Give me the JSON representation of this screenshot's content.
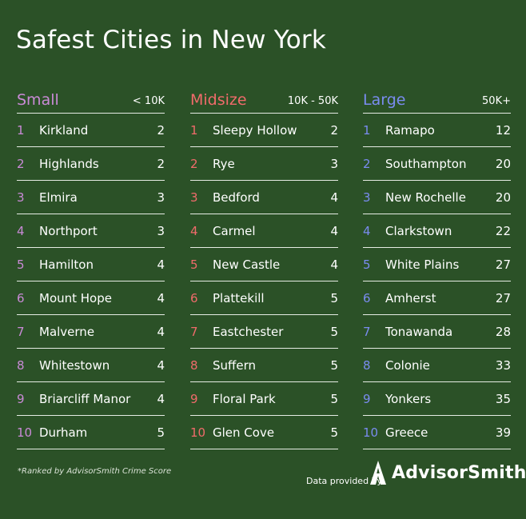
{
  "title": "Safest Cities in New York",
  "footnote": "*Ranked by AdvisorSmith Crime Score",
  "provided_by": "Data provided by",
  "brand": "AdvisorSmith",
  "colors": {
    "background": "#2b5127",
    "small": "#c98ad6",
    "midsize": "#f06b6b",
    "large": "#7a8cf0"
  },
  "columns": [
    {
      "name": "Small",
      "range": "< 10K",
      "color": "#c98ad6",
      "rows": [
        {
          "rank": "1",
          "city": "Kirkland",
          "score": "2"
        },
        {
          "rank": "2",
          "city": "Highlands",
          "score": "2"
        },
        {
          "rank": "3",
          "city": "Elmira",
          "score": "3"
        },
        {
          "rank": "4",
          "city": "Northport",
          "score": "3"
        },
        {
          "rank": "5",
          "city": "Hamilton",
          "score": "4"
        },
        {
          "rank": "6",
          "city": "Mount Hope",
          "score": "4"
        },
        {
          "rank": "7",
          "city": "Malverne",
          "score": "4"
        },
        {
          "rank": "8",
          "city": "Whitestown",
          "score": "4"
        },
        {
          "rank": "9",
          "city": "Briarcliff Manor",
          "score": "4"
        },
        {
          "rank": "10",
          "city": "Durham",
          "score": "5"
        }
      ]
    },
    {
      "name": "Midsize",
      "range": "10K - 50K",
      "color": "#f06b6b",
      "rows": [
        {
          "rank": "1",
          "city": "Sleepy Hollow",
          "score": "2"
        },
        {
          "rank": "2",
          "city": "Rye",
          "score": "3"
        },
        {
          "rank": "3",
          "city": "Bedford",
          "score": "4"
        },
        {
          "rank": "4",
          "city": "Carmel",
          "score": "4"
        },
        {
          "rank": "5",
          "city": "New Castle",
          "score": "4"
        },
        {
          "rank": "6",
          "city": "Plattekill",
          "score": "5"
        },
        {
          "rank": "7",
          "city": "Eastchester",
          "score": "5"
        },
        {
          "rank": "8",
          "city": "Suffern",
          "score": "5"
        },
        {
          "rank": "9",
          "city": "Floral Park",
          "score": "5"
        },
        {
          "rank": "10",
          "city": "Glen Cove",
          "score": "5"
        }
      ]
    },
    {
      "name": "Large",
      "range": "50K+",
      "color": "#7a8cf0",
      "rows": [
        {
          "rank": "1",
          "city": "Ramapo",
          "score": "12"
        },
        {
          "rank": "2",
          "city": "Southampton",
          "score": "20"
        },
        {
          "rank": "3",
          "city": "New Rochelle",
          "score": "20"
        },
        {
          "rank": "4",
          "city": "Clarkstown",
          "score": "22"
        },
        {
          "rank": "5",
          "city": "White Plains",
          "score": "27"
        },
        {
          "rank": "6",
          "city": "Amherst",
          "score": "27"
        },
        {
          "rank": "7",
          "city": "Tonawanda",
          "score": "28"
        },
        {
          "rank": "8",
          "city": "Colonie",
          "score": "33"
        },
        {
          "rank": "9",
          "city": "Yonkers",
          "score": "35"
        },
        {
          "rank": "10",
          "city": "Greece",
          "score": "39"
        }
      ]
    }
  ]
}
